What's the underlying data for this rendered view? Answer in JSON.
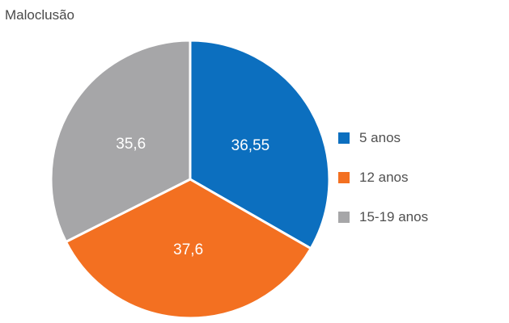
{
  "chart_data": {
    "type": "pie",
    "title": "Maloclusão",
    "slices": [
      {
        "label": "5 anos",
        "value": 36.55,
        "value_label": "36,55",
        "color": "#0c6fbf"
      },
      {
        "label": "12 anos",
        "value": 37.6,
        "value_label": "37,6",
        "color": "#f37021"
      },
      {
        "label": "15-19 anos",
        "value": 35.6,
        "value_label": "35,6",
        "color": "#a6a6a8"
      }
    ],
    "legend_position": "right"
  }
}
